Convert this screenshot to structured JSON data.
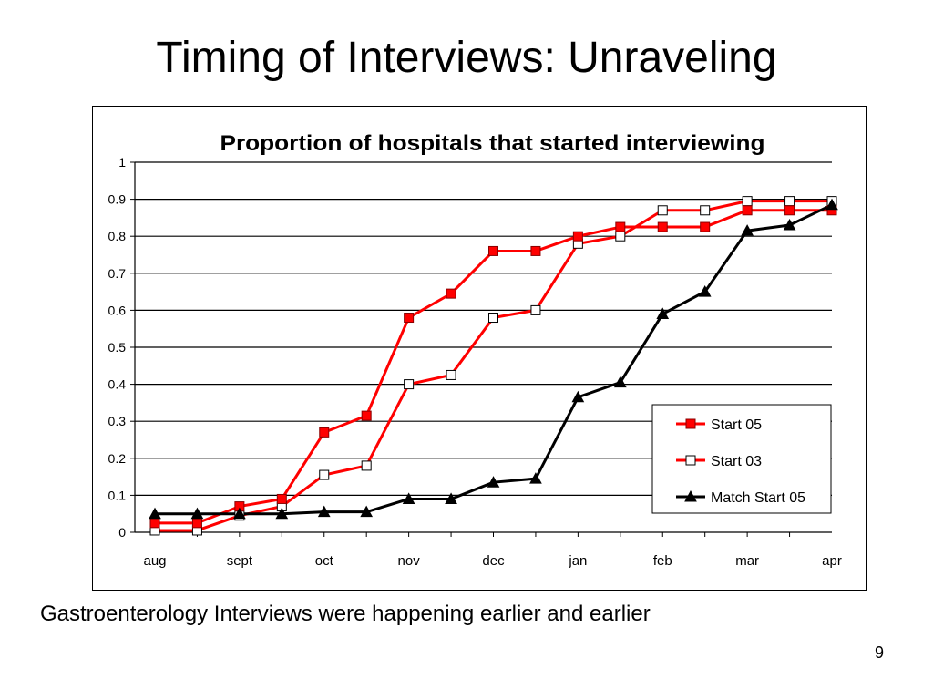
{
  "slide": {
    "title": "Timing of Interviews: Unraveling",
    "caption": "Gastroenterology Interviews were happening earlier and earlier",
    "page_number": "9"
  },
  "chart_data": {
    "type": "line",
    "title": "Proportion of hospitals that started interviewing",
    "xlabel": "",
    "ylabel": "",
    "categories": [
      "aug",
      "sept",
      "oct",
      "nov",
      "dec",
      "jan",
      "feb",
      "mar",
      "apr"
    ],
    "x": [
      0,
      0.5,
      1,
      1.5,
      2,
      2.5,
      3,
      3.5,
      4,
      4.5,
      5,
      5.5,
      6,
      6.5,
      7,
      7.5,
      8
    ],
    "ylim": [
      0,
      1
    ],
    "yticks": [
      "0",
      "0.1",
      "0.2",
      "0.3",
      "0.4",
      "0.5",
      "0.6",
      "0.7",
      "0.8",
      "0.9",
      "1"
    ],
    "grid": true,
    "legend_position": "bottom-right",
    "series": [
      {
        "name": "Start 05",
        "color": "#ff0000",
        "marker": "filled-square",
        "values": [
          0.025,
          0.025,
          0.07,
          0.09,
          0.27,
          0.315,
          0.58,
          0.645,
          0.76,
          0.76,
          0.8,
          0.825,
          0.825,
          0.825,
          0.87,
          0.87,
          0.87
        ]
      },
      {
        "name": "Start 03",
        "color": "#ff0000",
        "marker": "open-square",
        "values": [
          0.005,
          0.005,
          0.045,
          0.07,
          0.155,
          0.18,
          0.4,
          0.425,
          0.58,
          0.6,
          0.78,
          0.8,
          0.87,
          0.87,
          0.895,
          0.895,
          0.895
        ]
      },
      {
        "name": "Match Start 05",
        "color": "#000000",
        "marker": "filled-triangle",
        "values": [
          0.05,
          0.05,
          0.05,
          0.05,
          0.055,
          0.055,
          0.09,
          0.09,
          0.135,
          0.145,
          0.365,
          0.405,
          0.59,
          0.65,
          0.815,
          0.83,
          0.885
        ]
      }
    ]
  }
}
